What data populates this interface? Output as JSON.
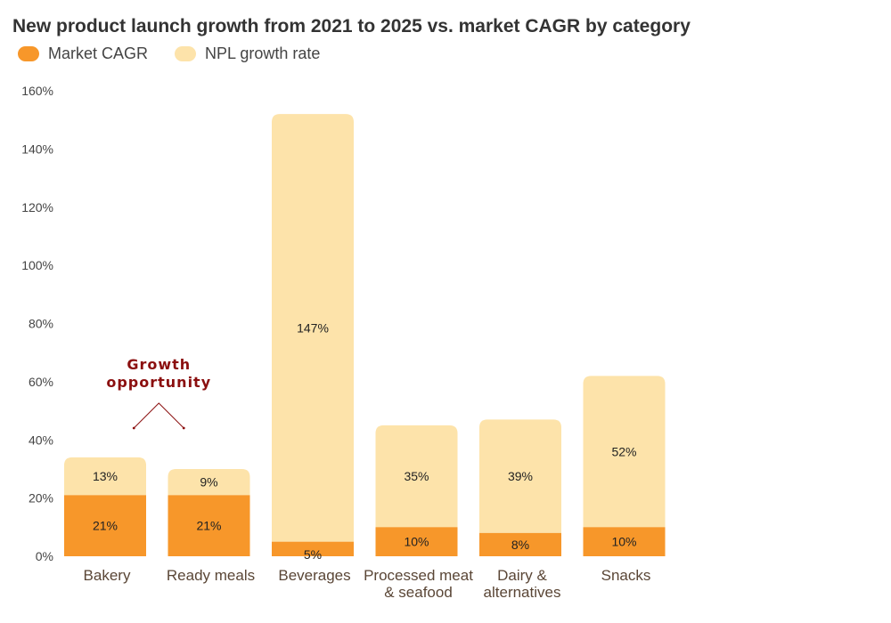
{
  "chart_data": {
    "type": "bar",
    "stacked": true,
    "title": "New product launch growth from 2021 to 2025 vs. market CAGR by category",
    "categories": [
      [
        "Bakery"
      ],
      [
        "Ready meals"
      ],
      [
        "Beverages"
      ],
      [
        "Processed meat",
        "& seafood"
      ],
      [
        "Dairy &",
        "alternatives"
      ],
      [
        "Snacks"
      ]
    ],
    "series": [
      {
        "name": "Market CAGR",
        "color": "#f7972a",
        "values": [
          21,
          21,
          5,
          10,
          8,
          10
        ],
        "labels": [
          "21%",
          "21%",
          "5%",
          "10%",
          "8%",
          "10%"
        ]
      },
      {
        "name": "NPL growth rate",
        "color": "#fde3aa",
        "values": [
          13,
          9,
          147,
          35,
          39,
          52
        ],
        "labels": [
          "13%",
          "9%",
          "147%",
          "35%",
          "39%",
          "52%"
        ]
      }
    ],
    "ylim": [
      0,
      160
    ],
    "yticks": [
      0,
      20,
      40,
      60,
      80,
      100,
      120,
      140,
      160
    ],
    "ytick_labels": [
      "0%",
      "20%",
      "40%",
      "60%",
      "80%",
      "100%",
      "120%",
      "140%",
      "160%"
    ],
    "grid": false,
    "legend_position": "top-left",
    "annotation": {
      "lines": [
        "Growth",
        "opportunity"
      ],
      "targets": [
        "Bakery",
        "Ready meals"
      ]
    }
  }
}
